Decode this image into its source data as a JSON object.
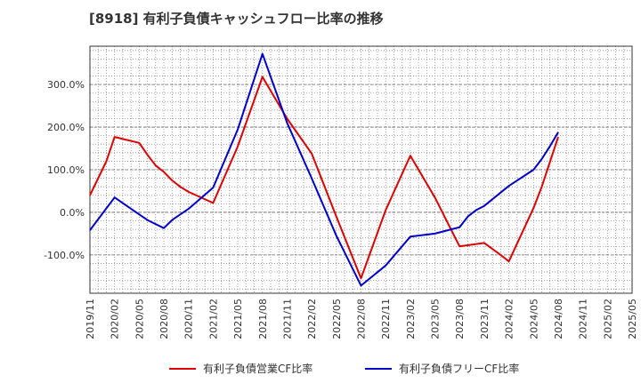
{
  "chart_data": {
    "type": "line",
    "title": "[8918]  有利子負債キャッシュフロー比率の推移",
    "xlabel": "",
    "ylabel": "",
    "ylim": [
      -190,
      390
    ],
    "yticks": [
      -100,
      0,
      100,
      200,
      300
    ],
    "ytick_labels": [
      "-100.0%",
      "0.0%",
      "100.0%",
      "200.0%",
      "300.0%"
    ],
    "x_ticks": [
      "2019/11",
      "2020/02",
      "2020/05",
      "2020/08",
      "2020/11",
      "2021/02",
      "2021/05",
      "2021/08",
      "2021/11",
      "2022/02",
      "2022/05",
      "2022/08",
      "2022/11",
      "2023/02",
      "2023/05",
      "2023/08",
      "2023/11",
      "2024/02",
      "2024/05",
      "2024/08",
      "2024/11",
      "2025/02",
      "2025/05"
    ],
    "grid": true,
    "legend_position": "bottom",
    "series": [
      {
        "name": "有利子負債営業CF比率",
        "color": "#dd0000",
        "points": [
          [
            "2019/11",
            40
          ],
          [
            "2020/01",
            120
          ],
          [
            "2020/02",
            177
          ],
          [
            "2020/05",
            163
          ],
          [
            "2020/06",
            135
          ],
          [
            "2020/07",
            110
          ],
          [
            "2020/08",
            95
          ],
          [
            "2020/09",
            75
          ],
          [
            "2020/10",
            60
          ],
          [
            "2020/11",
            48
          ],
          [
            "2021/02",
            22
          ],
          [
            "2021/05",
            155
          ],
          [
            "2021/08",
            318
          ],
          [
            "2021/11",
            220
          ],
          [
            "2022/02",
            138
          ],
          [
            "2022/05",
            -10
          ],
          [
            "2022/08",
            -155
          ],
          [
            "2022/11",
            5
          ],
          [
            "2023/02",
            133
          ],
          [
            "2023/05",
            35
          ],
          [
            "2023/08",
            -80
          ],
          [
            "2023/11",
            -72
          ],
          [
            "2024/01",
            -100
          ],
          [
            "2024/02",
            -115
          ],
          [
            "2024/05",
            10
          ],
          [
            "2024/06",
            60
          ],
          [
            "2024/08",
            177
          ]
        ]
      },
      {
        "name": "有利子負債フリーCF比率",
        "color": "#0000cc",
        "points": [
          [
            "2019/11",
            -42
          ],
          [
            "2020/02",
            35
          ],
          [
            "2020/05",
            -5
          ],
          [
            "2020/06",
            -18
          ],
          [
            "2020/08",
            -37
          ],
          [
            "2020/09",
            -18
          ],
          [
            "2020/11",
            8
          ],
          [
            "2021/02",
            58
          ],
          [
            "2021/05",
            195
          ],
          [
            "2021/08",
            372
          ],
          [
            "2021/11",
            210
          ],
          [
            "2022/02",
            80
          ],
          [
            "2022/05",
            -55
          ],
          [
            "2022/08",
            -172
          ],
          [
            "2022/11",
            -125
          ],
          [
            "2023/02",
            -57
          ],
          [
            "2023/05",
            -50
          ],
          [
            "2023/08",
            -35
          ],
          [
            "2023/09",
            -10
          ],
          [
            "2023/10",
            5
          ],
          [
            "2023/11",
            15
          ],
          [
            "2024/02",
            62
          ],
          [
            "2024/05",
            100
          ],
          [
            "2024/06",
            125
          ],
          [
            "2024/07",
            155
          ],
          [
            "2024/08",
            188
          ]
        ]
      }
    ]
  }
}
